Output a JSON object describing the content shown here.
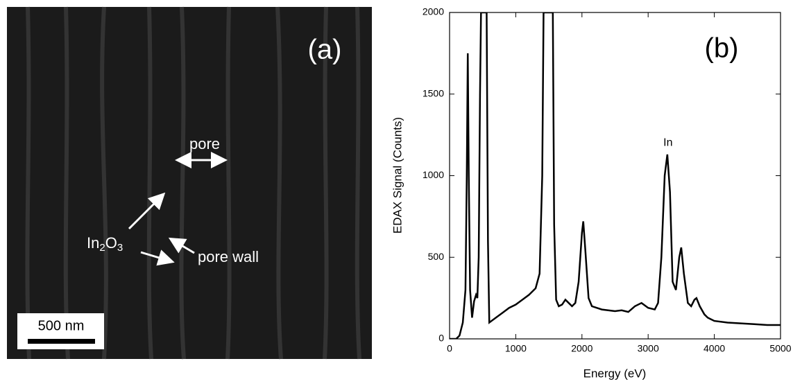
{
  "panel_a": {
    "label": "(a)",
    "pore": "pore",
    "oxide": [
      "In",
      "2",
      "O",
      "3"
    ],
    "pore_wall": "pore wall",
    "scale_bar": "500 nm"
  },
  "chart_data": {
    "type": "line",
    "label": "(b)",
    "x_label": "Energy (eV)",
    "y_label": "EDAX Signal (Counts)",
    "annotation": "In",
    "annotation_x": 3300,
    "annotation_y": 1200,
    "xlim": [
      0,
      5000
    ],
    "xticks": [
      0,
      1000,
      2000,
      3000,
      4000,
      5000
    ],
    "ylim": [
      0,
      2000
    ],
    "yticks": [
      0,
      500,
      1000,
      1500,
      2000
    ],
    "series": [
      {
        "color": "#000000",
        "x": [
          0,
          100,
          150,
          200,
          240,
          260,
          275,
          290,
          310,
          340,
          370,
          400,
          420,
          440,
          460,
          475,
          560,
          580,
          600,
          700,
          800,
          900,
          1000,
          1100,
          1200,
          1300,
          1360,
          1400,
          1420,
          1560,
          1580,
          1610,
          1650,
          1700,
          1750,
          1800,
          1850,
          1900,
          1950,
          2000,
          2020,
          2050,
          2100,
          2150,
          2300,
          2500,
          2600,
          2700,
          2800,
          2900,
          3000,
          3100,
          3150,
          3200,
          3250,
          3290,
          3330,
          3370,
          3420,
          3470,
          3500,
          3540,
          3600,
          3650,
          3700,
          3730,
          3780,
          3850,
          3900,
          3950,
          4000,
          4200,
          4400,
          4600,
          4800,
          5000
        ],
        "values": [
          0,
          0,
          20,
          100,
          300,
          1000,
          1750,
          1000,
          300,
          130,
          230,
          270,
          250,
          500,
          1500,
          2000,
          2000,
          600,
          100,
          130,
          160,
          190,
          210,
          240,
          270,
          310,
          400,
          1000,
          2000,
          2000,
          700,
          240,
          200,
          210,
          240,
          220,
          200,
          220,
          350,
          650,
          720,
          550,
          250,
          200,
          180,
          170,
          175,
          165,
          200,
          220,
          190,
          180,
          220,
          500,
          1000,
          1130,
          900,
          350,
          300,
          500,
          560,
          400,
          220,
          200,
          240,
          250,
          200,
          150,
          130,
          120,
          110,
          100,
          95,
          90,
          85,
          85
        ]
      }
    ]
  }
}
